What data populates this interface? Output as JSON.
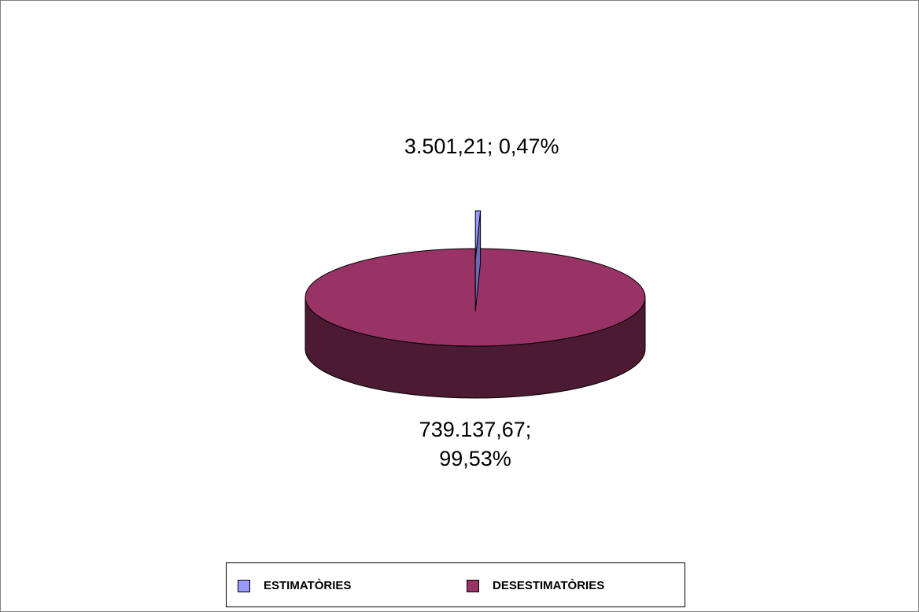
{
  "chart_data": {
    "type": "pie",
    "categories": [
      "ESTIMATÒRIES",
      "DESESTIMATÒRIES"
    ],
    "values": [
      3501.21,
      739137.67
    ],
    "value_labels": [
      "3.501,21; 0,47%",
      "739.137,67; 99,53%"
    ],
    "colors": [
      "#9999ff",
      "#993366"
    ],
    "legend": "bottom"
  }
}
